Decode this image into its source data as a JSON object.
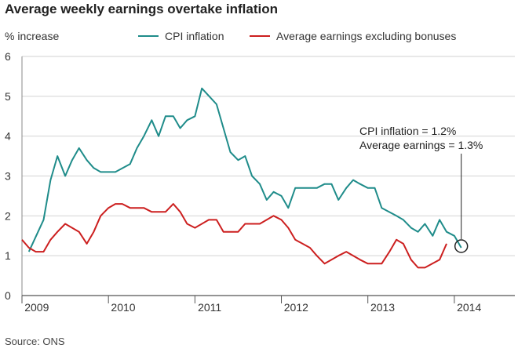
{
  "chart_data": {
    "type": "line",
    "title": "Average weekly earnings overtake inflation",
    "ylabel": "% increase",
    "xlabel": "",
    "ylim": [
      0,
      6
    ],
    "yticks": [
      0,
      1,
      2,
      3,
      4,
      5,
      6
    ],
    "xlim": [
      2008.92,
      2014.62
    ],
    "xticks": [
      {
        "label": "2009",
        "x": 2009.0
      },
      {
        "label": "2010",
        "x": 2010.0
      },
      {
        "label": "2011",
        "x": 2011.0
      },
      {
        "label": "2012",
        "x": 2012.0
      },
      {
        "label": "2013",
        "x": 2013.0
      },
      {
        "label": "2014",
        "x": 2014.0
      }
    ],
    "grid": true,
    "legend_position": "top",
    "series": [
      {
        "name": "CPI inflation",
        "color": "#1f8c8a",
        "points": [
          [
            2009.0,
            1.1
          ],
          [
            2009.17,
            1.9
          ],
          [
            2009.25,
            2.9
          ],
          [
            2009.33,
            3.5
          ],
          [
            2009.42,
            3.0
          ],
          [
            2009.5,
            3.4
          ],
          [
            2009.58,
            3.7
          ],
          [
            2009.67,
            3.4
          ],
          [
            2009.75,
            3.2
          ],
          [
            2009.83,
            3.1
          ],
          [
            2010.0,
            3.1
          ],
          [
            2010.17,
            3.3
          ],
          [
            2010.25,
            3.7
          ],
          [
            2010.33,
            4.0
          ],
          [
            2010.42,
            4.4
          ],
          [
            2010.5,
            4.0
          ],
          [
            2010.58,
            4.5
          ],
          [
            2010.67,
            4.5
          ],
          [
            2010.75,
            4.2
          ],
          [
            2010.83,
            4.4
          ],
          [
            2010.92,
            4.5
          ],
          [
            2011.0,
            5.2
          ],
          [
            2011.17,
            4.8
          ],
          [
            2011.25,
            4.2
          ],
          [
            2011.33,
            3.6
          ],
          [
            2011.42,
            3.4
          ],
          [
            2011.5,
            3.5
          ],
          [
            2011.58,
            3.0
          ],
          [
            2011.67,
            2.8
          ],
          [
            2011.75,
            2.4
          ],
          [
            2011.83,
            2.6
          ],
          [
            2011.92,
            2.5
          ],
          [
            2012.0,
            2.2
          ],
          [
            2012.08,
            2.7
          ],
          [
            2012.33,
            2.7
          ],
          [
            2012.42,
            2.8
          ],
          [
            2012.5,
            2.8
          ],
          [
            2012.58,
            2.4
          ],
          [
            2012.67,
            2.7
          ],
          [
            2012.75,
            2.9
          ],
          [
            2012.83,
            2.8
          ],
          [
            2012.92,
            2.7
          ],
          [
            2013.0,
            2.7
          ],
          [
            2013.08,
            2.2
          ],
          [
            2013.25,
            2.0
          ],
          [
            2013.33,
            1.9
          ],
          [
            2013.42,
            1.7
          ],
          [
            2013.5,
            1.6
          ],
          [
            2013.58,
            1.8
          ],
          [
            2013.67,
            1.5
          ],
          [
            2013.75,
            1.9
          ],
          [
            2013.83,
            1.6
          ],
          [
            2013.92,
            1.5
          ],
          [
            2014.0,
            1.2
          ]
        ]
      },
      {
        "name": "Average earnings excluding bonuses",
        "color": "#cc1f1f",
        "points": [
          [
            2008.92,
            1.4
          ],
          [
            2009.0,
            1.2
          ],
          [
            2009.08,
            1.1
          ],
          [
            2009.17,
            1.1
          ],
          [
            2009.25,
            1.4
          ],
          [
            2009.33,
            1.6
          ],
          [
            2009.42,
            1.8
          ],
          [
            2009.5,
            1.7
          ],
          [
            2009.58,
            1.6
          ],
          [
            2009.67,
            1.3
          ],
          [
            2009.75,
            1.6
          ],
          [
            2009.83,
            2.0
          ],
          [
            2009.92,
            2.2
          ],
          [
            2010.0,
            2.3
          ],
          [
            2010.08,
            2.3
          ],
          [
            2010.17,
            2.2
          ],
          [
            2010.33,
            2.2
          ],
          [
            2010.42,
            2.1
          ],
          [
            2010.58,
            2.1
          ],
          [
            2010.67,
            2.3
          ],
          [
            2010.75,
            2.1
          ],
          [
            2010.83,
            1.8
          ],
          [
            2010.92,
            1.7
          ],
          [
            2011.08,
            1.9
          ],
          [
            2011.17,
            1.9
          ],
          [
            2011.25,
            1.6
          ],
          [
            2011.42,
            1.6
          ],
          [
            2011.5,
            1.8
          ],
          [
            2011.67,
            1.8
          ],
          [
            2011.83,
            2.0
          ],
          [
            2011.92,
            1.9
          ],
          [
            2012.0,
            1.7
          ],
          [
            2012.08,
            1.4
          ],
          [
            2012.25,
            1.2
          ],
          [
            2012.33,
            1.0
          ],
          [
            2012.42,
            0.8
          ],
          [
            2012.58,
            1.0
          ],
          [
            2012.67,
            1.1
          ],
          [
            2012.83,
            0.9
          ],
          [
            2012.92,
            0.8
          ],
          [
            2013.08,
            0.8
          ],
          [
            2013.17,
            1.1
          ],
          [
            2013.25,
            1.4
          ],
          [
            2013.33,
            1.3
          ],
          [
            2013.42,
            0.9
          ],
          [
            2013.5,
            0.7
          ],
          [
            2013.58,
            0.7
          ],
          [
            2013.75,
            0.9
          ],
          [
            2013.83,
            1.3
          ]
        ]
      }
    ],
    "annotations": [
      {
        "text": "CPI inflation = 1.2%"
      },
      {
        "text": "Average earnings = 1.3%"
      }
    ],
    "source": "Source: ONS"
  }
}
